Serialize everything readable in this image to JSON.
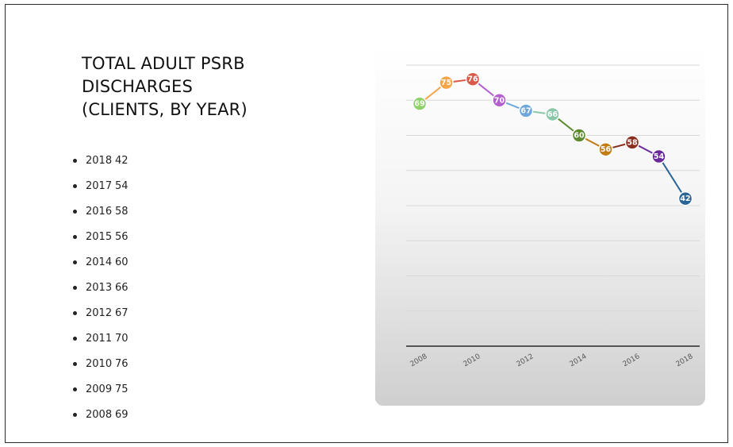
{
  "title_lines": [
    "TOTAL ADULT PSRB",
    "DISCHARGES",
    "(CLIENTS, BY YEAR)"
  ],
  "bullets": [
    {
      "year": "2018",
      "value": "42"
    },
    {
      "year": "2017",
      "value": "54"
    },
    {
      "year": "2016",
      "value": "58"
    },
    {
      "year": "2015",
      "value": "56"
    },
    {
      "year": "2014",
      "value": "60"
    },
    {
      "year": "2013",
      "value": "66"
    },
    {
      "year": "2012",
      "value": "67"
    },
    {
      "year": "2011",
      "value": "70"
    },
    {
      "year": "2010",
      "value": "76"
    },
    {
      "year": "2009",
      "value": "75"
    },
    {
      "year": "2008",
      "value": "69"
    }
  ],
  "chart_data": {
    "type": "line",
    "title": "TOTAL ADULT PSRB DISCHARGES (CLIENTS, BY YEAR)",
    "x": [
      2008,
      2009,
      2010,
      2011,
      2012,
      2013,
      2014,
      2015,
      2016,
      2017,
      2018
    ],
    "x_tick_labels": [
      "2008",
      "2010",
      "2012",
      "2014",
      "2016",
      "2018"
    ],
    "series": [
      {
        "values": [
          69,
          75,
          76,
          70,
          67,
          66,
          60,
          56,
          58,
          54,
          42
        ]
      }
    ],
    "point_colors": [
      "#8fd16a",
      "#f5a54a",
      "#d75a4a",
      "#b35fcf",
      "#6ea7dc",
      "#89c7a9",
      "#5d8a2e",
      "#c27d15",
      "#8a2f20",
      "#6b2a9c",
      "#2a6597"
    ],
    "ylim": [
      0,
      80
    ],
    "grid": true,
    "show_y_axis_labels": false,
    "xlabel": "",
    "ylabel": ""
  }
}
